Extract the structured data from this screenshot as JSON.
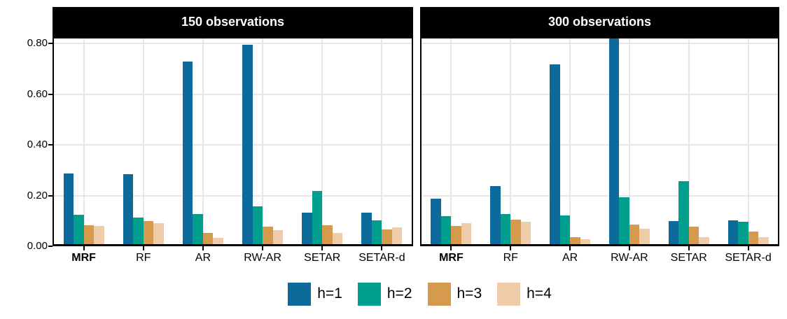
{
  "chart_data": {
    "type": "bar",
    "layout": "two-facet grouped (dodged) bar chart, shared y axis, legend bottom center",
    "categories": [
      "MRF",
      "RF",
      "AR",
      "RW-AR",
      "SETAR",
      "SETAR-d"
    ],
    "bold_category": "MRF",
    "grid": "light gray major gridlines horizontal and vertical, black panel border, black facet strip",
    "legend_position": "bottom-center",
    "series_labels": [
      "h=1",
      "h=2",
      "h=3",
      "h=4"
    ],
    "series_colors": [
      "#0c6b9a",
      "#009e8c",
      "#d69a4f",
      "#efcdaa"
    ],
    "ylim": [
      0,
      0.825
    ],
    "yticks": [
      0.0,
      0.2,
      0.4,
      0.6,
      0.8
    ],
    "ytick_labels": [
      "0.00",
      "0.20",
      "0.40",
      "0.60",
      "0.80"
    ],
    "xlabel": "",
    "ylabel": "",
    "panels": [
      {
        "title": "150 observations",
        "series": [
          {
            "name": "h=1",
            "values": [
              0.28,
              0.277,
              0.72,
              0.787,
              0.123,
              0.123
            ]
          },
          {
            "name": "h=2",
            "values": [
              0.115,
              0.105,
              0.118,
              0.148,
              0.211,
              0.093
            ]
          },
          {
            "name": "h=3",
            "values": [
              0.075,
              0.091,
              0.044,
              0.069,
              0.074,
              0.057
            ]
          },
          {
            "name": "h=4",
            "values": [
              0.073,
              0.084,
              0.024,
              0.054,
              0.044,
              0.065
            ]
          }
        ]
      },
      {
        "title": "300 observations",
        "series": [
          {
            "name": "h=1",
            "values": [
              0.18,
              0.228,
              0.71,
              0.822,
              0.092,
              0.094
            ]
          },
          {
            "name": "h=2",
            "values": [
              0.11,
              0.118,
              0.113,
              0.184,
              0.247,
              0.089
            ]
          },
          {
            "name": "h=3",
            "values": [
              0.073,
              0.096,
              0.028,
              0.078,
              0.07,
              0.051
            ]
          },
          {
            "name": "h=4",
            "values": [
              0.084,
              0.088,
              0.018,
              0.062,
              0.028,
              0.028
            ]
          }
        ]
      }
    ],
    "colors": {
      "strip_background": "#000000",
      "strip_text": "#ffffff",
      "panel_background": "#ffffff",
      "panel_border": "#000000",
      "gridline": "#e7e7e7",
      "axis_text": "#000000"
    }
  },
  "legend": {
    "items": [
      {
        "label": "h=1",
        "color": "#0c6b9a"
      },
      {
        "label": "h=2",
        "color": "#009e8c"
      },
      {
        "label": "h=3",
        "color": "#d69a4f"
      },
      {
        "label": "h=4",
        "color": "#efcdaa"
      }
    ]
  }
}
